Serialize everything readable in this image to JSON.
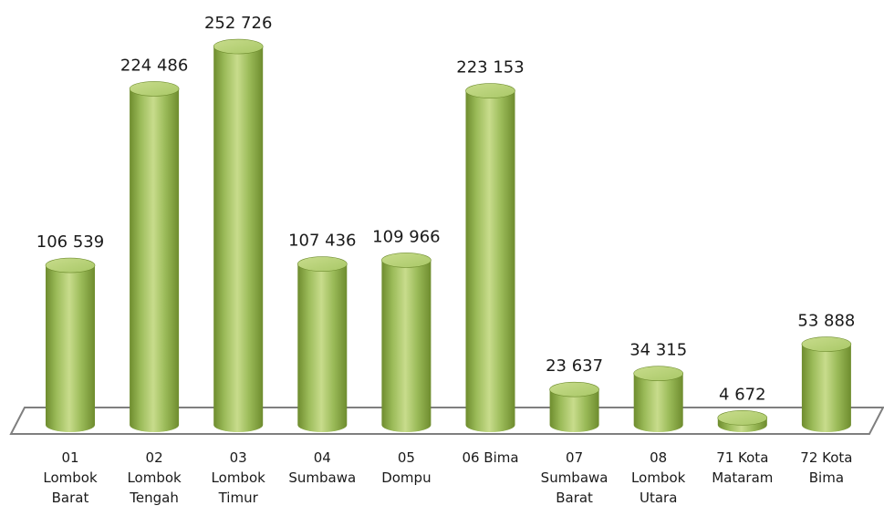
{
  "chart_data": {
    "type": "bar",
    "style": "3d-cylinder",
    "categories": [
      [
        "01",
        "Lombok",
        "Barat"
      ],
      [
        "02",
        "Lombok",
        "Tengah"
      ],
      [
        "03",
        "Lombok",
        "Timur"
      ],
      [
        "04",
        "Sumbawa"
      ],
      [
        "05",
        "Dompu"
      ],
      [
        "06  Bima"
      ],
      [
        "07",
        "Sumbawa",
        "Barat"
      ],
      [
        "08",
        "Lombok",
        "Utara"
      ],
      [
        "71  Kota",
        "Mataram"
      ],
      [
        "72  Kota",
        "Bima"
      ]
    ],
    "values": [
      106539,
      224486,
      252726,
      107436,
      109966,
      223153,
      23637,
      34315,
      4672,
      53888
    ],
    "value_labels": [
      "106 539",
      "224 486",
      "252 726",
      "107 436",
      "109 966",
      "223 153",
      "23 637",
      "34 315",
      "4 672",
      "53 888"
    ],
    "title": "",
    "xlabel": "",
    "ylabel": "",
    "ylim": [
      0,
      260000
    ],
    "grid": false,
    "legend": "none",
    "colors": {
      "bar_fill": "#9bbb59",
      "bar_dark": "#6e8c2e",
      "bar_light": "#c8dc8c",
      "bar_top": "#a9c867",
      "floor_stroke": "#7f7f7f"
    }
  }
}
